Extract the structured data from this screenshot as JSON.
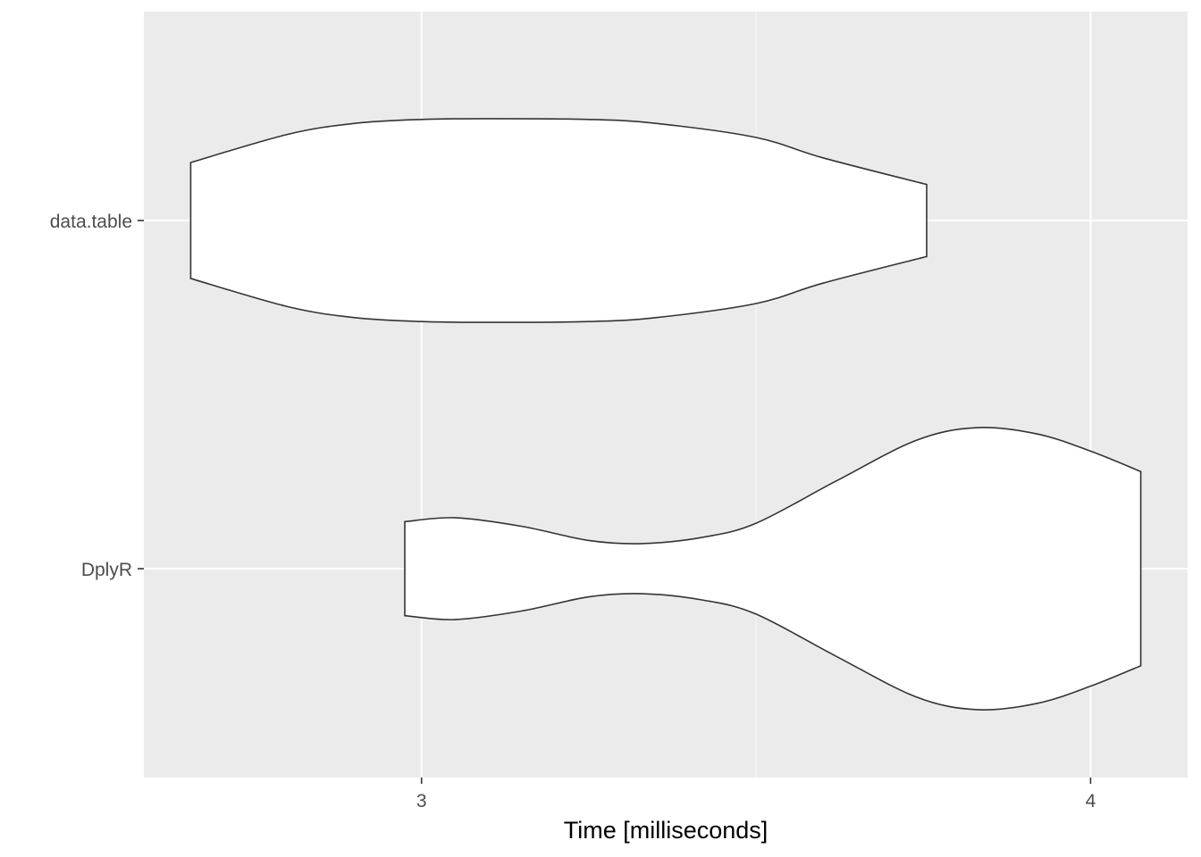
{
  "chart_data": {
    "type": "violin",
    "orientation": "horizontal",
    "xlabel": "Time [milliseconds]",
    "ylabel": "",
    "xlim": [
      2.585,
      4.145
    ],
    "x_ticks": [
      3,
      4
    ],
    "x_tick_labels": [
      "3",
      "4"
    ],
    "x_minor_ticks": [
      3.5
    ],
    "categories": [
      "data.table",
      "DplyR"
    ],
    "grid": true,
    "colors": {
      "panel_background": "#ebebeb",
      "grid_major": "#ffffff",
      "grid_minor": "#f5f5f5",
      "violin_fill": "#ffffff",
      "violin_stroke": "#333333"
    },
    "series": [
      {
        "category": "data.table",
        "profile": [
          {
            "x": 2.655,
            "width": 0.37
          },
          {
            "x": 2.8,
            "width": 0.55
          },
          {
            "x": 2.9,
            "width": 0.62
          },
          {
            "x": 3.0,
            "width": 0.645
          },
          {
            "x": 3.1,
            "width": 0.65
          },
          {
            "x": 3.25,
            "width": 0.645
          },
          {
            "x": 3.35,
            "width": 0.62
          },
          {
            "x": 3.5,
            "width": 0.53
          },
          {
            "x": 3.6,
            "width": 0.4
          },
          {
            "x": 3.755,
            "width": 0.23
          }
        ]
      },
      {
        "category": "DplyR",
        "profile": [
          {
            "x": 2.975,
            "width": 0.3
          },
          {
            "x": 3.05,
            "width": 0.325
          },
          {
            "x": 3.15,
            "width": 0.27
          },
          {
            "x": 3.25,
            "width": 0.18
          },
          {
            "x": 3.33,
            "width": 0.16
          },
          {
            "x": 3.42,
            "width": 0.2
          },
          {
            "x": 3.5,
            "width": 0.29
          },
          {
            "x": 3.62,
            "width": 0.56
          },
          {
            "x": 3.74,
            "width": 0.82
          },
          {
            "x": 3.83,
            "width": 0.9
          },
          {
            "x": 3.92,
            "width": 0.86
          },
          {
            "x": 4.0,
            "width": 0.75
          },
          {
            "x": 4.075,
            "width": 0.62
          }
        ]
      }
    ]
  }
}
